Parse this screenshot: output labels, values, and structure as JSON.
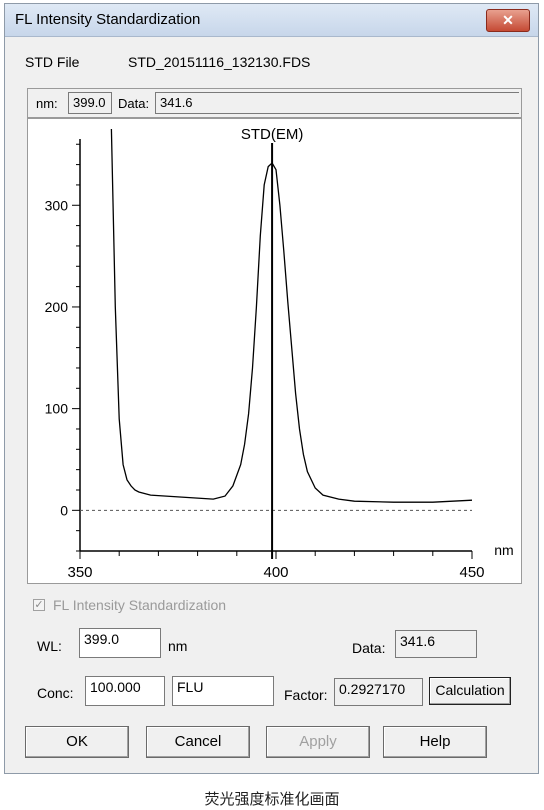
{
  "window": {
    "title": "FL Intensity Standardization",
    "close_icon": "close-icon"
  },
  "std_file": {
    "label": "STD File",
    "value": "STD_20151116_132130.FDS"
  },
  "infobar": {
    "nm_label": "nm:",
    "nm_value": "399.0",
    "data_label": "Data:",
    "data_value": "341.6"
  },
  "chart_data": {
    "type": "line",
    "title": "STD(EM)",
    "xlabel": "nm",
    "ylabel": "",
    "xlim": [
      350,
      450
    ],
    "ylim": [
      -40,
      375
    ],
    "xticks": [
      350,
      400,
      450
    ],
    "yticks": [
      0,
      100,
      200,
      300
    ],
    "cursor_x": 399.0,
    "baseline_y": 0,
    "series": [
      {
        "x": [
          358,
          359,
          360,
          361,
          362,
          363,
          364,
          365,
          368,
          372,
          376,
          380,
          384,
          387,
          389,
          391,
          392,
          393,
          394,
          395,
          396,
          397,
          398,
          399,
          400,
          401,
          402,
          403,
          404,
          405,
          406,
          407,
          408,
          410,
          412,
          416,
          420,
          430,
          440,
          450
        ],
        "values": [
          375,
          200,
          90,
          45,
          30,
          24,
          20,
          18,
          15,
          14,
          13,
          12,
          11,
          14,
          24,
          45,
          65,
          95,
          140,
          200,
          270,
          320,
          338,
          341.6,
          335,
          300,
          255,
          205,
          160,
          115,
          80,
          55,
          38,
          22,
          15,
          11,
          9,
          8,
          8,
          10
        ]
      }
    ]
  },
  "checkbox": {
    "label": "FL Intensity Standardization",
    "checked": true
  },
  "wl": {
    "label": "WL:",
    "value": "399.0",
    "unit": "nm"
  },
  "data_field": {
    "label": "Data:",
    "value": "341.6"
  },
  "conc": {
    "label": "Conc:",
    "value": "100.000",
    "unit_value": "FLU"
  },
  "factor": {
    "label": "Factor:",
    "value": "0.2927170"
  },
  "buttons": {
    "calculation": "Calculation",
    "ok": "OK",
    "cancel": "Cancel",
    "apply": "Apply",
    "help": "Help"
  },
  "caption": "荧光强度标准化画面"
}
